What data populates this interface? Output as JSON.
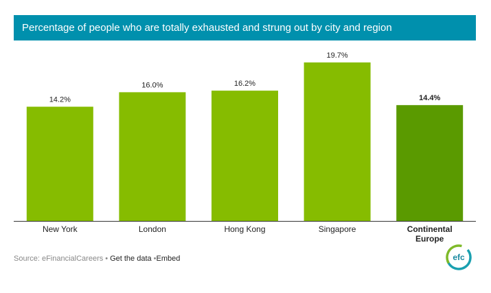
{
  "header": {
    "title": "Percentage of people who are totally exhausted and strung out by city and region"
  },
  "chart_data": {
    "type": "bar",
    "title": "Percentage of people who are totally exhausted and strung out by city and region",
    "xlabel": "",
    "ylabel": "",
    "categories": [
      "New York",
      "London",
      "Hong Kong",
      "Singapore",
      "Continental Europe"
    ],
    "values": [
      14.2,
      16.0,
      16.2,
      19.7,
      14.4
    ],
    "value_labels": [
      "14.2%",
      "16.0%",
      "16.2%",
      "19.7%",
      "14.4%"
    ],
    "ylim": [
      0,
      21
    ],
    "grid": false,
    "legend": "none",
    "highlight_index": 4,
    "colors": {
      "bar": "#86bc00",
      "highlight_bar": "#5a9a00",
      "axis": "#333333",
      "label": "#222222"
    }
  },
  "footer": {
    "source": "Source: eFinancialCareers",
    "get_data": "Get the data",
    "embed": "Embed"
  },
  "logo": {
    "text": "efc",
    "colors": {
      "ring_green": "#7fba2a",
      "ring_teal": "#1aa0b0",
      "text": "#1b8aa0"
    }
  }
}
